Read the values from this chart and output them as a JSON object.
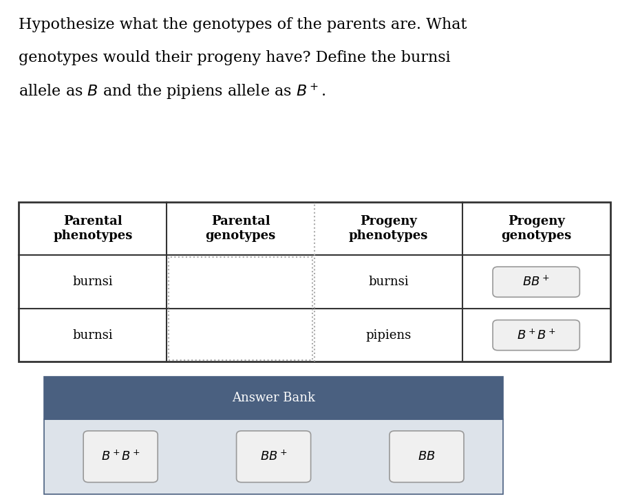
{
  "title_lines": [
    "Hypothesize what the genotypes of the parents are. What",
    "genotypes would their progeny have? Define the burnsi",
    "allele as $B$ and the pipiens allele as $B^+$."
  ],
  "bg_color": "#ffffff",
  "table_headers": [
    "Parental\nphenotypes",
    "Parental\ngenotypes",
    "Progeny\nphenotypes",
    "Progeny\ngenotypes"
  ],
  "row1": [
    "burnsi",
    "",
    "burnsi",
    "BB^+"
  ],
  "row2": [
    "burnsi",
    "",
    "pipiens",
    "B^+B^+"
  ],
  "answer_bank_header": "Answer Bank",
  "answer_bank_items": [
    "B^+B^+",
    "BB^+",
    "BB"
  ],
  "answer_bank_bg": "#4a6080",
  "answer_bank_body_bg": "#dde3ea",
  "table_border_color": "#333333",
  "dashed_border_color": "#aaaaaa",
  "header_font_size": 13,
  "cell_font_size": 13,
  "title_font_size": 16
}
